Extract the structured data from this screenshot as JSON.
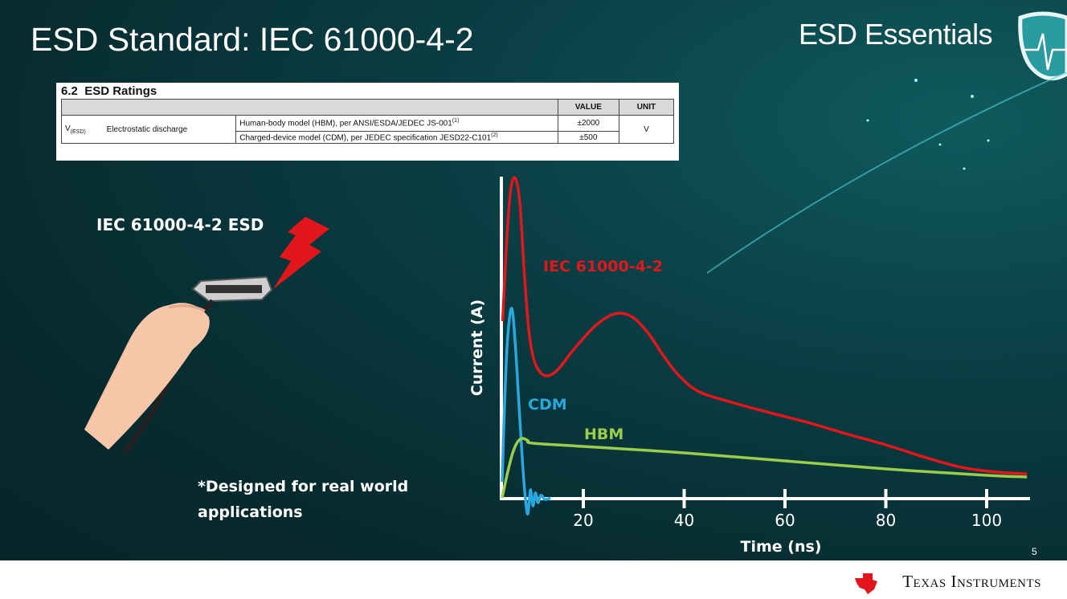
{
  "slide": {
    "title": "ESD Standard: IEC 61000-4-2",
    "brand": "ESD Essentials",
    "page_number": "5",
    "company": "Texas Instruments",
    "left_label": "IEC 61000-4-2 ESD",
    "note_line1": "*Designed for real world",
    "note_line2": "applications"
  },
  "table": {
    "section": "6.2",
    "title": "ESD Ratings",
    "headers": [
      "",
      "",
      "",
      "VALUE",
      "UNIT"
    ],
    "symbol": "V",
    "symbol_sub": "(ESD)",
    "parameter": "Electrostatic discharge",
    "rows": [
      {
        "condition": "Human-body model (HBM), per ANSI/ESDA/JEDEC JS-001",
        "note": "(1)",
        "value": "±2000"
      },
      {
        "condition": "Charged-device model (CDM), per JEDEC specification JESD22-C101",
        "note": "(2)",
        "value": "±500"
      }
    ],
    "unit": "V"
  },
  "chart_data": {
    "type": "line",
    "xlabel": "Time (ns)",
    "ylabel": "Current (A)",
    "xlim": [
      3.7,
      109
    ],
    "ylim": [
      0,
      100
    ],
    "x_ticks": [
      20,
      40,
      60,
      80,
      100
    ],
    "y_ticks": [],
    "grid": false,
    "legend": "inline labels",
    "series": [
      {
        "name": "IEC 61000-4-2",
        "color": "#e3161b",
        "points": [
          [
            4.0,
            55
          ],
          [
            4.8,
            80
          ],
          [
            5.6,
            96
          ],
          [
            6.5,
            99.5
          ],
          [
            7.4,
            92
          ],
          [
            8.3,
            70
          ],
          [
            9.2,
            52
          ],
          [
            10.2,
            43
          ],
          [
            11.5,
            39
          ],
          [
            13,
            38
          ],
          [
            15,
            40
          ],
          [
            18,
            46
          ],
          [
            22,
            53
          ],
          [
            25,
            56.5
          ],
          [
            27.5,
            57.5
          ],
          [
            30,
            56
          ],
          [
            33,
            51
          ],
          [
            36,
            44
          ],
          [
            39,
            38
          ],
          [
            43,
            33
          ],
          [
            50,
            29.5
          ],
          [
            57,
            26.5
          ],
          [
            64,
            23.7
          ],
          [
            72,
            20
          ],
          [
            80,
            16.5
          ],
          [
            88,
            12.5
          ],
          [
            95,
            9.5
          ],
          [
            102,
            8
          ],
          [
            108,
            7.5
          ]
        ]
      },
      {
        "name": "CDM",
        "color": "#2aa7de",
        "points": [
          [
            3.9,
            5
          ],
          [
            4.4,
            30
          ],
          [
            5.0,
            50
          ],
          [
            5.8,
            59
          ],
          [
            6.5,
            48
          ],
          [
            7.2,
            30
          ],
          [
            7.9,
            12
          ],
          [
            8.5,
            0
          ],
          [
            9.0,
            -5
          ],
          [
            9.5,
            2.5
          ],
          [
            10,
            -2.5
          ],
          [
            10.5,
            1.5
          ],
          [
            11,
            -1.5
          ],
          [
            11.6,
            0.8
          ],
          [
            12.4,
            -0.5
          ],
          [
            13.5,
            0
          ]
        ]
      },
      {
        "name": "HBM",
        "color": "#9acd4b",
        "points": [
          [
            3.9,
            0
          ],
          [
            5,
            8
          ],
          [
            6,
            14
          ],
          [
            7,
            17.5
          ],
          [
            8,
            18.5
          ],
          [
            9,
            17.8
          ],
          [
            10,
            17
          ],
          [
            20,
            16
          ],
          [
            40,
            14
          ],
          [
            60,
            11.5
          ],
          [
            80,
            9
          ],
          [
            100,
            7
          ],
          [
            108,
            6.5
          ]
        ]
      }
    ]
  }
}
